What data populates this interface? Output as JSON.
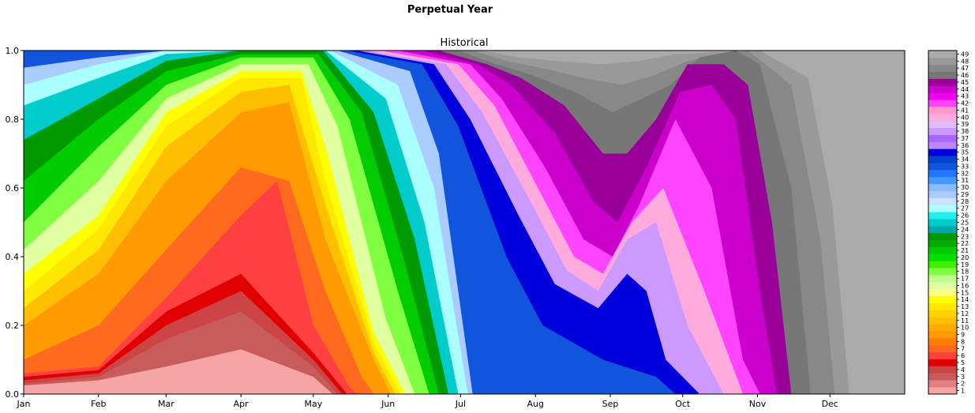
{
  "chart_data": {
    "type": "heatmap",
    "suptitle": "Perpetual Year",
    "title": "Historical",
    "ylim": [
      0,
      1.0
    ],
    "y_ticks": [
      "0.0",
      "0.2",
      "0.4",
      "0.6",
      "0.8",
      "1.0"
    ],
    "x_ticks": [
      "Jan",
      "Feb",
      "Mar",
      "Apr",
      "May",
      "Jun",
      "Jul",
      "Aug",
      "Sep",
      "Oct",
      "Nov",
      "Dec"
    ],
    "x_tick_days": [
      0,
      31,
      59,
      90,
      120,
      151,
      181,
      212,
      243,
      273,
      304,
      334
    ],
    "days_in_year": 365,
    "colorbar_levels": [
      1,
      2,
      3,
      4,
      5,
      6,
      7,
      8,
      9,
      10,
      11,
      12,
      13,
      14,
      15,
      16,
      17,
      18,
      19,
      20,
      21,
      22,
      23,
      24,
      25,
      26,
      27,
      28,
      29,
      30,
      31,
      32,
      33,
      34,
      35,
      36,
      37,
      38,
      39,
      40,
      41,
      42,
      43,
      44,
      45,
      46,
      47,
      48,
      49
    ],
    "colors": [
      "#ffc0c0",
      "#f7a4a4",
      "#e08080",
      "#c85c5c",
      "#cc4444",
      "#e00000",
      "#ff4040",
      "#ff6a1e",
      "#ff7d00",
      "#ff9a00",
      "#ffaa00",
      "#ffbf00",
      "#ffd200",
      "#ffe800",
      "#ffff00",
      "#ffff80",
      "#dfffa0",
      "#bfff90",
      "#80ff40",
      "#40ee00",
      "#00e000",
      "#00cc00",
      "#00aa00",
      "#009900",
      "#00aaaa",
      "#00cccc",
      "#22eeee",
      "#aaffff",
      "#cce0ff",
      "#aaccff",
      "#88bbff",
      "#4499ff",
      "#2277ff",
      "#1155dd",
      "#0044cc",
      "#0000dd",
      "#bb88ff",
      "#aa66ff",
      "#cc99ff",
      "#ddbbff",
      "#ffaadd",
      "#ff99cc",
      "#ff44ff",
      "#ee00ee",
      "#cc00cc",
      "#990099",
      "#777777",
      "#888888",
      "#999999",
      "#aaaaaa",
      "#bbbbbb",
      "#c8c8c8"
    ],
    "bands": [
      {
        "level": 1,
        "bounds": [
          [
            0,
            0.025
          ],
          [
            31,
            0.04
          ],
          [
            59,
            0.08
          ],
          [
            90,
            0.13
          ],
          [
            120,
            0.05
          ],
          [
            128,
            0.0
          ]
        ]
      },
      {
        "level": 3,
        "bounds": [
          [
            0,
            0.03
          ],
          [
            31,
            0.05
          ],
          [
            59,
            0.16
          ],
          [
            90,
            0.24
          ],
          [
            120,
            0.08
          ],
          [
            130,
            0.0
          ]
        ]
      },
      {
        "level": 4,
        "bounds": [
          [
            0,
            0.04
          ],
          [
            31,
            0.06
          ],
          [
            59,
            0.2
          ],
          [
            90,
            0.3
          ],
          [
            120,
            0.1
          ],
          [
            132,
            0.0
          ]
        ]
      },
      {
        "level": 5,
        "bounds": [
          [
            0,
            0.05
          ],
          [
            31,
            0.07
          ],
          [
            59,
            0.24
          ],
          [
            90,
            0.35
          ],
          [
            120,
            0.12
          ],
          [
            134,
            0.0
          ]
        ]
      },
      {
        "level": 6,
        "bounds": [
          [
            0,
            0.06
          ],
          [
            31,
            0.08
          ],
          [
            59,
            0.28
          ],
          [
            90,
            0.52
          ],
          [
            105,
            0.62
          ],
          [
            120,
            0.2
          ],
          [
            135,
            0.02
          ],
          [
            138,
            0.0
          ]
        ]
      },
      {
        "level": 7,
        "bounds": [
          [
            0,
            0.1
          ],
          [
            31,
            0.2
          ],
          [
            59,
            0.42
          ],
          [
            90,
            0.66
          ],
          [
            110,
            0.62
          ],
          [
            125,
            0.3
          ],
          [
            140,
            0.05
          ],
          [
            145,
            0.0
          ]
        ]
      },
      {
        "level": 9,
        "bounds": [
          [
            0,
            0.2
          ],
          [
            31,
            0.35
          ],
          [
            59,
            0.62
          ],
          [
            90,
            0.82
          ],
          [
            110,
            0.85
          ],
          [
            125,
            0.45
          ],
          [
            145,
            0.1
          ],
          [
            152,
            0.0
          ]
        ]
      },
      {
        "level": 11,
        "bounds": [
          [
            0,
            0.25
          ],
          [
            31,
            0.42
          ],
          [
            59,
            0.72
          ],
          [
            90,
            0.88
          ],
          [
            110,
            0.9
          ],
          [
            125,
            0.55
          ],
          [
            145,
            0.12
          ],
          [
            154,
            0.0
          ]
        ]
      },
      {
        "level": 13,
        "bounds": [
          [
            0,
            0.3
          ],
          [
            31,
            0.48
          ],
          [
            59,
            0.78
          ],
          [
            90,
            0.92
          ],
          [
            115,
            0.92
          ],
          [
            125,
            0.62
          ],
          [
            145,
            0.15
          ],
          [
            156,
            0.0
          ]
        ]
      },
      {
        "level": 14,
        "bounds": [
          [
            0,
            0.35
          ],
          [
            31,
            0.52
          ],
          [
            59,
            0.82
          ],
          [
            90,
            0.94
          ],
          [
            115,
            0.94
          ],
          [
            125,
            0.72
          ],
          [
            145,
            0.18
          ],
          [
            158,
            0.0
          ]
        ]
      },
      {
        "level": 16,
        "bounds": [
          [
            0,
            0.42
          ],
          [
            31,
            0.62
          ],
          [
            59,
            0.86
          ],
          [
            90,
            0.96
          ],
          [
            118,
            0.96
          ],
          [
            130,
            0.78
          ],
          [
            150,
            0.22
          ],
          [
            162,
            0.0
          ]
        ]
      },
      {
        "level": 18,
        "bounds": [
          [
            0,
            0.5
          ],
          [
            31,
            0.72
          ],
          [
            59,
            0.9
          ],
          [
            90,
            0.98
          ],
          [
            120,
            0.98
          ],
          [
            135,
            0.8
          ],
          [
            155,
            0.3
          ],
          [
            168,
            0.0
          ]
        ]
      },
      {
        "level": 21,
        "bounds": [
          [
            0,
            0.62
          ],
          [
            31,
            0.8
          ],
          [
            59,
            0.94
          ],
          [
            90,
            0.99
          ],
          [
            122,
            0.99
          ],
          [
            140,
            0.82
          ],
          [
            158,
            0.38
          ],
          [
            172,
            0.0
          ]
        ]
      },
      {
        "level": 23,
        "bounds": [
          [
            0,
            0.74
          ],
          [
            31,
            0.86
          ],
          [
            59,
            0.97
          ],
          [
            90,
            1.0
          ],
          [
            124,
            1.0
          ],
          [
            145,
            0.82
          ],
          [
            162,
            0.45
          ],
          [
            176,
            0.0
          ]
        ]
      },
      {
        "level": 25,
        "bounds": [
          [
            0,
            0.84
          ],
          [
            31,
            0.92
          ],
          [
            59,
            0.99
          ],
          [
            90,
            1.0
          ],
          [
            125,
            1.0
          ],
          [
            150,
            0.86
          ],
          [
            166,
            0.5
          ],
          [
            180,
            0.0
          ]
        ]
      },
      {
        "level": 27,
        "bounds": [
          [
            0,
            0.9
          ],
          [
            31,
            0.96
          ],
          [
            59,
            1.0
          ],
          [
            127,
            1.0
          ],
          [
            155,
            0.9
          ],
          [
            170,
            0.6
          ],
          [
            184,
            0.0
          ]
        ]
      },
      {
        "level": 29,
        "bounds": [
          [
            0,
            0.95
          ],
          [
            31,
            0.98
          ],
          [
            59,
            1.0
          ],
          [
            130,
            1.0
          ],
          [
            160,
            0.94
          ],
          [
            172,
            0.7
          ],
          [
            186,
            0.0
          ]
        ]
      },
      {
        "level": 33,
        "bounds": [
          [
            0,
            1.0
          ],
          [
            134,
            1.0
          ],
          [
            165,
            0.96
          ],
          [
            180,
            0.78
          ],
          [
            200,
            0.4
          ],
          [
            215,
            0.2
          ],
          [
            240,
            0.1
          ],
          [
            262,
            0.05
          ],
          [
            270,
            0.0
          ]
        ]
      },
      {
        "level": 35,
        "bounds": [
          [
            0,
            1.0
          ],
          [
            138,
            1.0
          ],
          [
            170,
            0.96
          ],
          [
            185,
            0.8
          ],
          [
            205,
            0.52
          ],
          [
            220,
            0.32
          ],
          [
            238,
            0.25
          ],
          [
            250,
            0.35
          ],
          [
            258,
            0.3
          ],
          [
            266,
            0.1
          ],
          [
            280,
            0.0
          ]
        ]
      },
      {
        "level": 38,
        "bounds": [
          [
            0,
            1.0
          ],
          [
            142,
            1.0
          ],
          [
            175,
            0.96
          ],
          [
            190,
            0.82
          ],
          [
            210,
            0.56
          ],
          [
            225,
            0.36
          ],
          [
            238,
            0.3
          ],
          [
            250,
            0.45
          ],
          [
            262,
            0.5
          ],
          [
            275,
            0.2
          ],
          [
            290,
            0.0
          ]
        ]
      },
      {
        "level": 40,
        "bounds": [
          [
            0,
            1.0
          ],
          [
            148,
            1.0
          ],
          [
            180,
            0.96
          ],
          [
            195,
            0.84
          ],
          [
            213,
            0.6
          ],
          [
            228,
            0.4
          ],
          [
            240,
            0.35
          ],
          [
            252,
            0.5
          ],
          [
            265,
            0.6
          ],
          [
            282,
            0.3
          ],
          [
            298,
            0.0
          ]
        ]
      },
      {
        "level": 42,
        "bounds": [
          [
            0,
            1.0
          ],
          [
            155,
            1.0
          ],
          [
            185,
            0.96
          ],
          [
            198,
            0.86
          ],
          [
            216,
            0.66
          ],
          [
            232,
            0.45
          ],
          [
            244,
            0.4
          ],
          [
            255,
            0.55
          ],
          [
            270,
            0.8
          ],
          [
            285,
            0.6
          ],
          [
            298,
            0.1
          ],
          [
            305,
            0.0
          ]
        ]
      },
      {
        "level": 44,
        "bounds": [
          [
            0,
            1.0
          ],
          [
            165,
            1.0
          ],
          [
            188,
            0.96
          ],
          [
            202,
            0.9
          ],
          [
            220,
            0.76
          ],
          [
            236,
            0.56
          ],
          [
            246,
            0.5
          ],
          [
            258,
            0.66
          ],
          [
            272,
            0.88
          ],
          [
            285,
            0.9
          ],
          [
            295,
            0.8
          ],
          [
            305,
            0.3
          ],
          [
            312,
            0.0
          ]
        ]
      },
      {
        "level": 45,
        "bounds": [
          [
            0,
            1.0
          ],
          [
            172,
            1.0
          ],
          [
            192,
            0.96
          ],
          [
            206,
            0.92
          ],
          [
            224,
            0.84
          ],
          [
            240,
            0.7
          ],
          [
            250,
            0.7
          ],
          [
            262,
            0.8
          ],
          [
            275,
            0.96
          ],
          [
            290,
            0.96
          ],
          [
            300,
            0.9
          ],
          [
            310,
            0.5
          ],
          [
            318,
            0.0
          ]
        ]
      },
      {
        "level": 46,
        "bounds": [
          [
            0,
            1.0
          ],
          [
            180,
            1.0
          ],
          [
            196,
            0.96
          ],
          [
            210,
            0.93
          ],
          [
            228,
            0.88
          ],
          [
            244,
            0.82
          ],
          [
            256,
            0.86
          ],
          [
            268,
            0.9
          ],
          [
            280,
            0.98
          ],
          [
            295,
            1.0
          ],
          [
            305,
            0.96
          ],
          [
            318,
            0.6
          ],
          [
            326,
            0.0
          ]
        ]
      },
      {
        "level": 47,
        "bounds": [
          [
            0,
            1.0
          ],
          [
            186,
            1.0
          ],
          [
            200,
            0.97
          ],
          [
            214,
            0.95
          ],
          [
            232,
            0.92
          ],
          [
            248,
            0.9
          ],
          [
            262,
            0.93
          ],
          [
            275,
            0.97
          ],
          [
            300,
            1.0
          ],
          [
            318,
            0.9
          ],
          [
            330,
            0.45
          ],
          [
            336,
            0.0
          ]
        ]
      },
      {
        "level": 48,
        "bounds": [
          [
            0,
            1.0
          ],
          [
            190,
            1.0
          ],
          [
            205,
            0.98
          ],
          [
            220,
            0.97
          ],
          [
            240,
            0.96
          ],
          [
            255,
            0.97
          ],
          [
            270,
            0.99
          ],
          [
            305,
            1.0
          ],
          [
            325,
            0.92
          ],
          [
            335,
            0.55
          ],
          [
            342,
            0.0
          ]
        ]
      },
      {
        "level": 49,
        "bounds": [
          [
            0,
            1.0
          ],
          [
            196,
            1.0
          ],
          [
            215,
            0.99
          ],
          [
            235,
            0.99
          ],
          [
            250,
            0.99
          ],
          [
            265,
            1.0
          ],
          [
            310,
            1.0
          ],
          [
            330,
            0.95
          ],
          [
            340,
            0.6
          ],
          [
            348,
            0.0
          ]
        ]
      }
    ]
  }
}
